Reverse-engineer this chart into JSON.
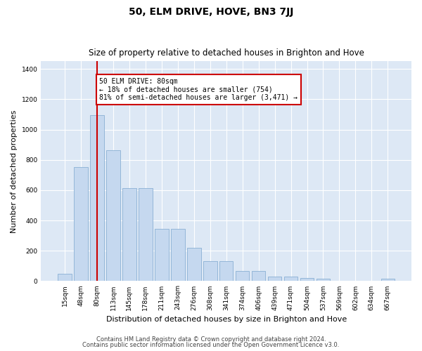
{
  "title": "50, ELM DRIVE, HOVE, BN3 7JJ",
  "subtitle": "Size of property relative to detached houses in Brighton and Hove",
  "xlabel": "Distribution of detached houses by size in Brighton and Hove",
  "ylabel": "Number of detached properties",
  "categories": [
    "15sqm",
    "48sqm",
    "80sqm",
    "113sqm",
    "145sqm",
    "178sqm",
    "211sqm",
    "243sqm",
    "276sqm",
    "308sqm",
    "341sqm",
    "374sqm",
    "406sqm",
    "439sqm",
    "471sqm",
    "504sqm",
    "537sqm",
    "569sqm",
    "602sqm",
    "634sqm",
    "667sqm"
  ],
  "values": [
    47,
    752,
    1097,
    863,
    615,
    615,
    344,
    344,
    220,
    130,
    133,
    65,
    65,
    28,
    28,
    20,
    14,
    4,
    4,
    4,
    14
  ],
  "bar_color": "#c5d8ef",
  "bar_edge_color": "#8ab0d4",
  "highlight_index": 2,
  "highlight_line_color": "#cc0000",
  "annotation_text": "50 ELM DRIVE: 80sqm\n← 18% of detached houses are smaller (754)\n81% of semi-detached houses are larger (3,471) →",
  "annotation_box_color": "#ffffff",
  "annotation_box_edge": "#cc0000",
  "ylim": [
    0,
    1450
  ],
  "yticks": [
    0,
    200,
    400,
    600,
    800,
    1000,
    1200,
    1400
  ],
  "footer1": "Contains HM Land Registry data © Crown copyright and database right 2024.",
  "footer2": "Contains public sector information licensed under the Open Government Licence v3.0.",
  "fig_bg_color": "#ffffff",
  "plot_bg_color": "#dde8f5",
  "title_fontsize": 10,
  "subtitle_fontsize": 8.5,
  "tick_fontsize": 6.5,
  "label_fontsize": 8,
  "footer_fontsize": 6
}
